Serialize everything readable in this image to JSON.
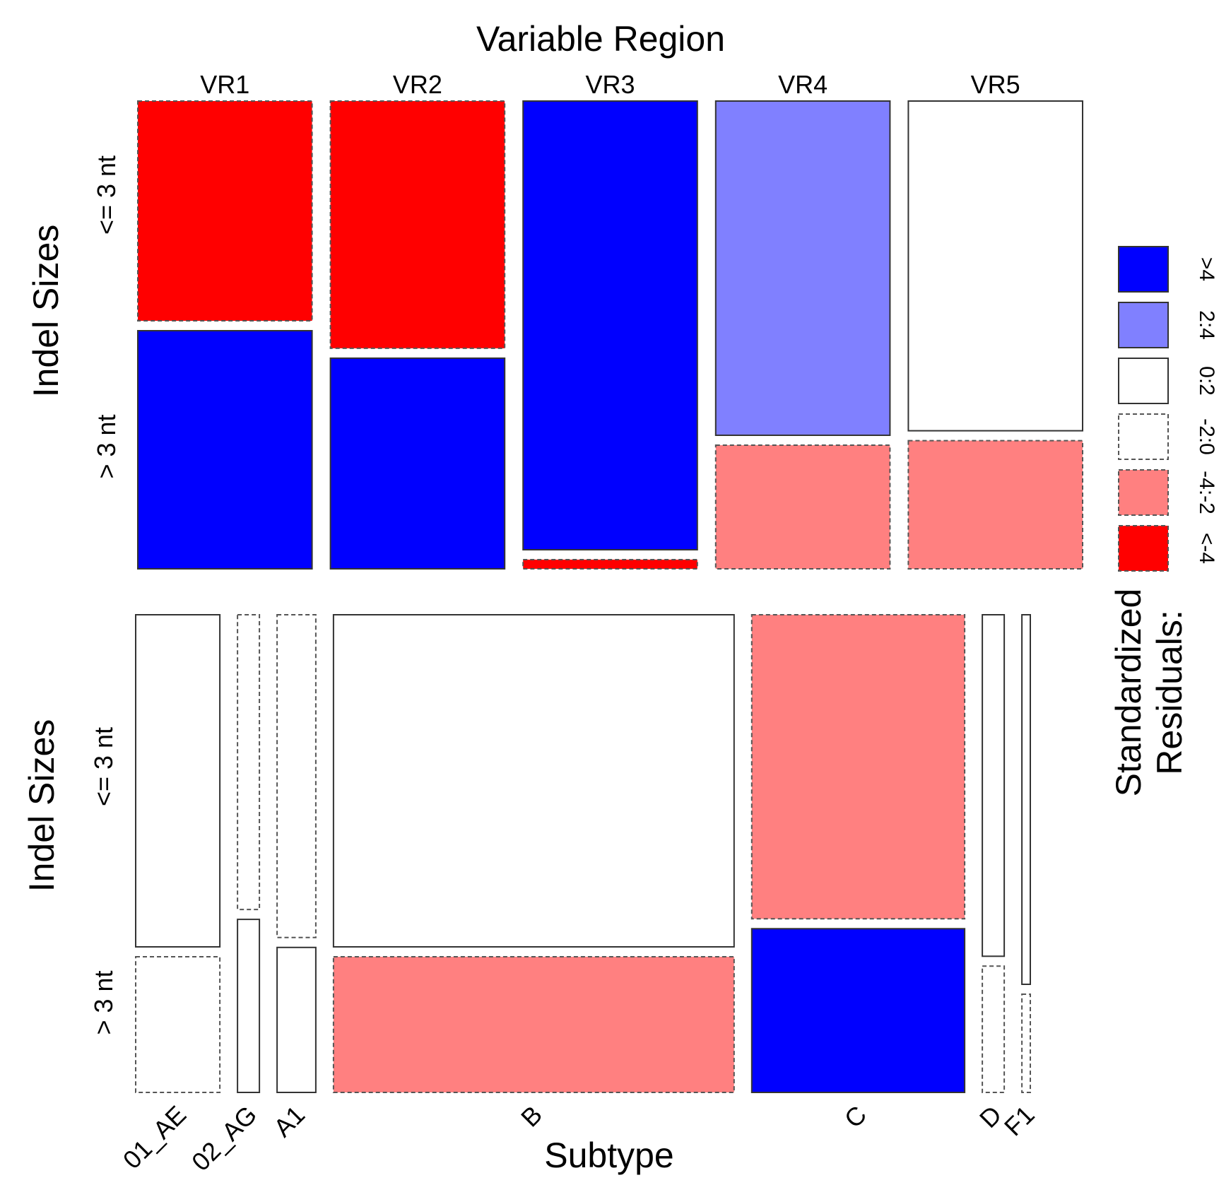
{
  "chart_data": [
    {
      "type": "mosaic",
      "title": "Variable Region",
      "xlabel": "",
      "ylabel": "Indel Sizes",
      "categories": [
        "VR1",
        "VR2",
        "VR3",
        "VR4",
        "VR5"
      ],
      "rows": [
        "<= 3 nt",
        "> 3 nt"
      ],
      "column_proportions": [
        0.2,
        0.2,
        0.2,
        0.2,
        0.2
      ],
      "upper_row_share": [
        0.48,
        0.54,
        0.98,
        0.73,
        0.72
      ],
      "residual_class": [
        [
          "<-4",
          ">4"
        ],
        [
          "<-4",
          ">4"
        ],
        [
          ">4",
          "<-4"
        ],
        [
          "2:4",
          "-4:-2"
        ],
        [
          "0:2",
          "-4:-2"
        ]
      ]
    },
    {
      "type": "mosaic",
      "title": "",
      "xlabel": "Subtype",
      "ylabel": "Indel Sizes",
      "categories": [
        "01_AE",
        "02_AG",
        "A1",
        "B",
        "C",
        "D",
        "F1"
      ],
      "rows": [
        "<= 3 nt",
        "> 3 nt"
      ],
      "column_proportions": [
        0.1,
        0.026,
        0.046,
        0.476,
        0.253,
        0.026,
        0.01
      ],
      "upper_row_share": [
        0.71,
        0.63,
        0.69,
        0.71,
        0.65,
        0.73,
        0.79
      ],
      "residual_class": [
        [
          "0:2",
          "-2:0"
        ],
        [
          "-2:0",
          "0:2"
        ],
        [
          "-2:0",
          "0:2"
        ],
        [
          "0:2",
          "-4:-2"
        ],
        [
          "-4:-2",
          ">4"
        ],
        [
          "0:2",
          "-2:0"
        ],
        [
          "0:2",
          "-2:0"
        ]
      ]
    }
  ],
  "legend": {
    "title_lines": [
      "Standardized",
      "Residuals:"
    ],
    "items": [
      {
        "label": ">4",
        "class": ">4"
      },
      {
        "label": "2:4",
        "class": "2:4"
      },
      {
        "label": "0:2",
        "class": "0:2"
      },
      {
        "label": "-2:0",
        "class": "-2:0"
      },
      {
        "label": "-4:-2",
        "class": "-4:-2"
      },
      {
        "label": "<-4",
        "class": "<-4"
      }
    ]
  },
  "residual_styles": {
    ">4": {
      "fill": "#0000ff",
      "dashed": false
    },
    "2:4": {
      "fill": "#8080ff",
      "dashed": false
    },
    "0:2": {
      "fill": "#ffffff",
      "dashed": false
    },
    "-2:0": {
      "fill": "#ffffff",
      "dashed": true
    },
    "-4:-2": {
      "fill": "#ff8080",
      "dashed": true
    },
    "<-4": {
      "fill": "#ff0000",
      "dashed": true
    }
  }
}
